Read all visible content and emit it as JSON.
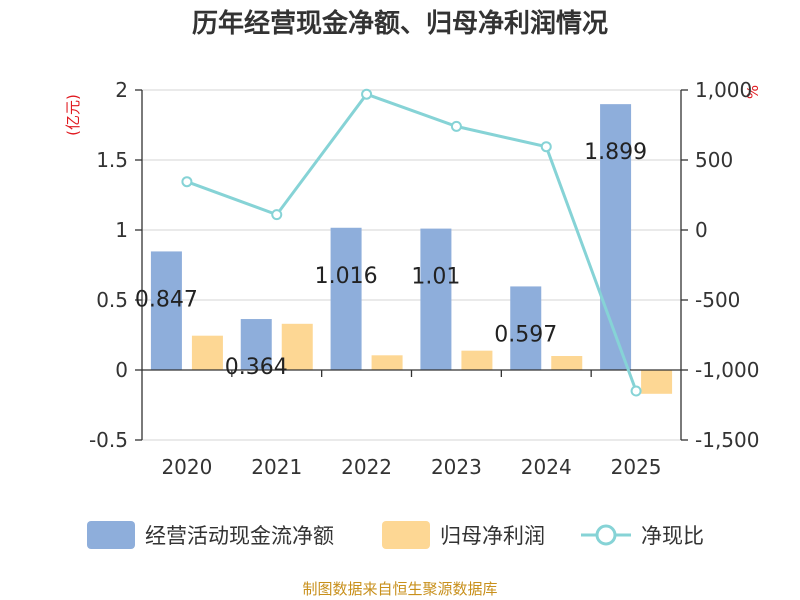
{
  "chart_data": {
    "type": "bar+line",
    "title": "历年经营现金净额、归母净利润情况",
    "categories": [
      "2020",
      "2021",
      "2022",
      "2023",
      "2024",
      "2025"
    ],
    "series": [
      {
        "name": "经营活动现金流净额",
        "type": "bar",
        "axis": "left",
        "color": "#8eaedb",
        "values": [
          0.847,
          0.364,
          1.016,
          1.01,
          0.597,
          1.899
        ],
        "labels": [
          "0.847",
          "0.364",
          "1.016",
          "1.01",
          "0.597",
          "1.899"
        ]
      },
      {
        "name": "归母净利润",
        "type": "bar",
        "axis": "left",
        "color": "#fdd794",
        "values": [
          0.245,
          0.33,
          0.105,
          0.138,
          0.1,
          -0.17
        ]
      },
      {
        "name": "净现比",
        "type": "line",
        "axis": "right",
        "color": "#86d3d6",
        "values": [
          345,
          110,
          970,
          740,
          595,
          -1150
        ]
      }
    ],
    "y_left": {
      "unit": "(亿元)",
      "ylim": [
        -0.5,
        2
      ],
      "ticks": [
        "2",
        "1.5",
        "1",
        "0.5",
        "0",
        "-0.5"
      ],
      "tick_values": [
        2,
        1.5,
        1,
        0.5,
        0,
        -0.5
      ]
    },
    "y_right": {
      "unit": "%",
      "ylim": [
        -1500,
        1000
      ],
      "ticks": [
        "1,000",
        "500",
        "0",
        "-500",
        "-1,000",
        "-1,500"
      ],
      "tick_values": [
        1000,
        500,
        0,
        -500,
        -1000,
        -1500
      ]
    },
    "grid": true,
    "legend_position": "bottom"
  },
  "legend": {
    "items": [
      "经营活动现金流净额",
      "归母净利润",
      "净现比"
    ]
  },
  "source": "制图数据来自恒生聚源数据库"
}
